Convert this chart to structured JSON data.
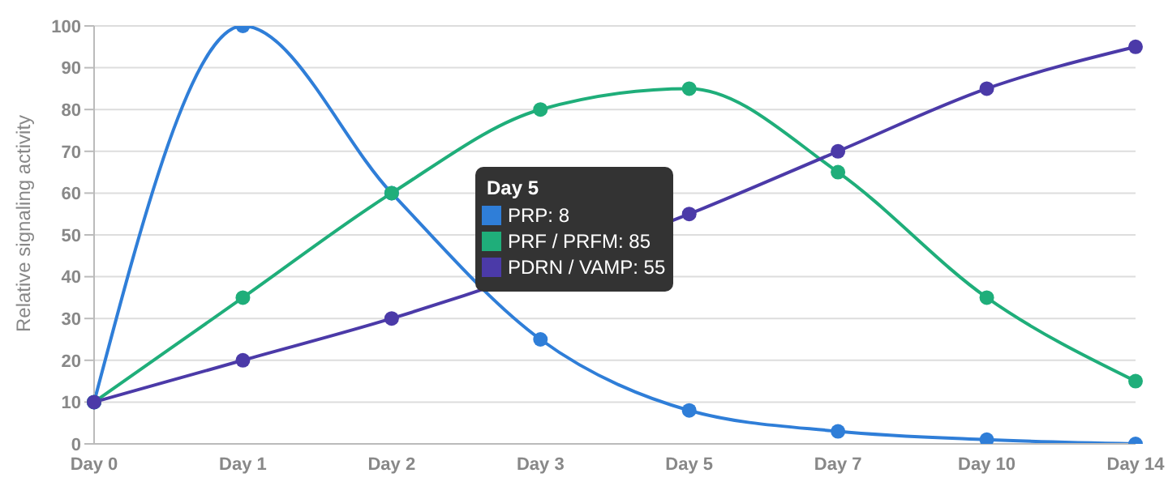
{
  "chart_data": {
    "type": "line",
    "ylabel": "Relative signaling activity",
    "legend_title": "Day 5",
    "categories": [
      "Day 0",
      "Day 1",
      "Day 2",
      "Day 3",
      "Day 5",
      "Day 7",
      "Day 10",
      "Day 14"
    ],
    "series": [
      {
        "name": "PRP: 8",
        "color": "#2f7ed8",
        "values": [
          10,
          100,
          60,
          25,
          8,
          3,
          1,
          0
        ]
      },
      {
        "name": "PRF / PRFM: 85",
        "color": "#1fae7a",
        "values": [
          10,
          35,
          60,
          80,
          85,
          65,
          35,
          15
        ]
      },
      {
        "name": "PDRN / VAMP: 55",
        "color": "#4b3aa8",
        "values": [
          10,
          20,
          30,
          null,
          55,
          70,
          85,
          95
        ]
      }
    ],
    "ylim": [
      0,
      100
    ],
    "yticks": [
      0,
      10,
      20,
      30,
      40,
      50,
      60,
      70,
      80,
      90,
      100
    ],
    "grid": "y",
    "legend": "center",
    "marker": "circle",
    "line_style": "solid"
  }
}
